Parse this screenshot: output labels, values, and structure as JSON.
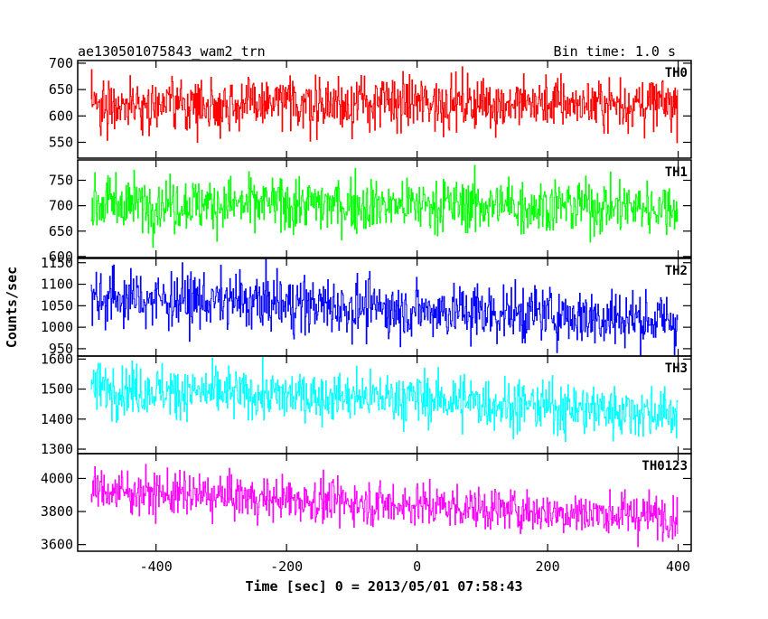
{
  "header": {
    "title": "ae130501075843_wam2_trn",
    "bin_time": "Bin time: 1.0 s"
  },
  "axes": {
    "xlabel": "Time [sec] 0 = 2013/05/01 07:58:43",
    "ylabel": "Counts/sec"
  },
  "chart_data": {
    "type": "line",
    "title": "ae130501075843_wam2_trn",
    "subtitle": "Bin time: 1.0 s",
    "xlabel": "Time [sec] 0 = 2013/05/01 07:58:43",
    "ylabel": "Counts/sec",
    "xlim": [
      -520,
      420
    ],
    "x_ticks": [
      -400,
      -200,
      0,
      200,
      400
    ],
    "x_range": [
      -500,
      399
    ],
    "bin_time": 1.0,
    "grid": false,
    "panels": [
      {
        "name": "TH0",
        "color": "#ff0000",
        "ylim": [
          520,
          705
        ],
        "y_ticks": [
          550,
          600,
          650,
          700
        ],
        "trend": [
          [
            -500,
            622
          ],
          [
            -250,
            622
          ],
          [
            0,
            625
          ],
          [
            200,
            624
          ],
          [
            399,
            622
          ]
        ],
        "noise_sd": 25,
        "spike_max": 705,
        "spike_min": 522
      },
      {
        "name": "TH1",
        "color": "#00ff00",
        "ylim": [
          598,
          790
        ],
        "y_ticks": [
          600,
          650,
          700,
          750
        ],
        "trend": [
          [
            -500,
            705
          ],
          [
            -250,
            703
          ],
          [
            0,
            702
          ],
          [
            200,
            700
          ],
          [
            399,
            697
          ]
        ],
        "noise_sd": 27,
        "spike_max": 790,
        "spike_min": 600
      },
      {
        "name": "TH2",
        "color": "#0000ff",
        "ylim": [
          933,
          1160
        ],
        "y_ticks": [
          950,
          1000,
          1050,
          1100,
          1150
        ],
        "trend": [
          [
            -500,
            1070
          ],
          [
            -250,
            1058
          ],
          [
            0,
            1040
          ],
          [
            200,
            1030
          ],
          [
            399,
            1015
          ]
        ],
        "noise_sd": 33,
        "spike_max": 1160,
        "spike_min": 935
      },
      {
        "name": "TH3",
        "color": "#00ffff",
        "ylim": [
          1285,
          1610
        ],
        "y_ticks": [
          1300,
          1400,
          1500,
          1600
        ],
        "trend": [
          [
            -500,
            1505
          ],
          [
            -250,
            1480
          ],
          [
            0,
            1470
          ],
          [
            200,
            1440
          ],
          [
            399,
            1420
          ]
        ],
        "noise_sd": 42,
        "spike_max": 1610,
        "spike_min": 1290
      },
      {
        "name": "TH0123",
        "color": "#ff00ff",
        "ylim": [
          3560,
          4150
        ],
        "y_ticks": [
          3600,
          3800,
          4000
        ],
        "trend": [
          [
            -500,
            3930
          ],
          [
            -250,
            3880
          ],
          [
            0,
            3840
          ],
          [
            200,
            3800
          ],
          [
            399,
            3770
          ]
        ],
        "noise_sd": 65,
        "spike_max": 4150,
        "spike_min": 3565
      }
    ]
  }
}
